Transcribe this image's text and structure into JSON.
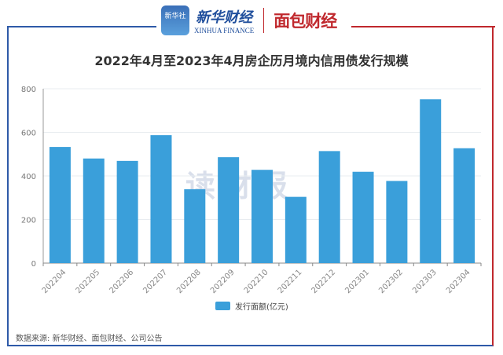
{
  "header": {
    "logo_xinhua_icon_text": "新华社",
    "logo_xinhua_cn": "新华财经",
    "logo_xinhua_en": "XINHUA FINANCE",
    "logo_mianbao": "面包财经",
    "watermark": "读财报"
  },
  "chart_data": {
    "type": "bar",
    "title": "2022年4月至2023年4月房企历月境内信用债发行规模",
    "categories": [
      "202204",
      "202205",
      "202206",
      "202207",
      "202208",
      "202209",
      "202210",
      "202211",
      "202212",
      "202301",
      "202302",
      "202303",
      "202304"
    ],
    "series": [
      {
        "name": "发行面额(亿元)",
        "values": [
          533,
          480,
          469,
          587,
          339,
          486,
          428,
          304,
          514,
          419,
          377,
          752,
          527
        ],
        "color": "#3a9fda"
      }
    ],
    "ylim": [
      0,
      800
    ],
    "yticks": [
      0,
      200,
      400,
      600,
      800
    ],
    "grid": true,
    "legend": "bottom"
  },
  "footer": {
    "source": "数据来源: 新华财经、面包财经、公司公告"
  }
}
